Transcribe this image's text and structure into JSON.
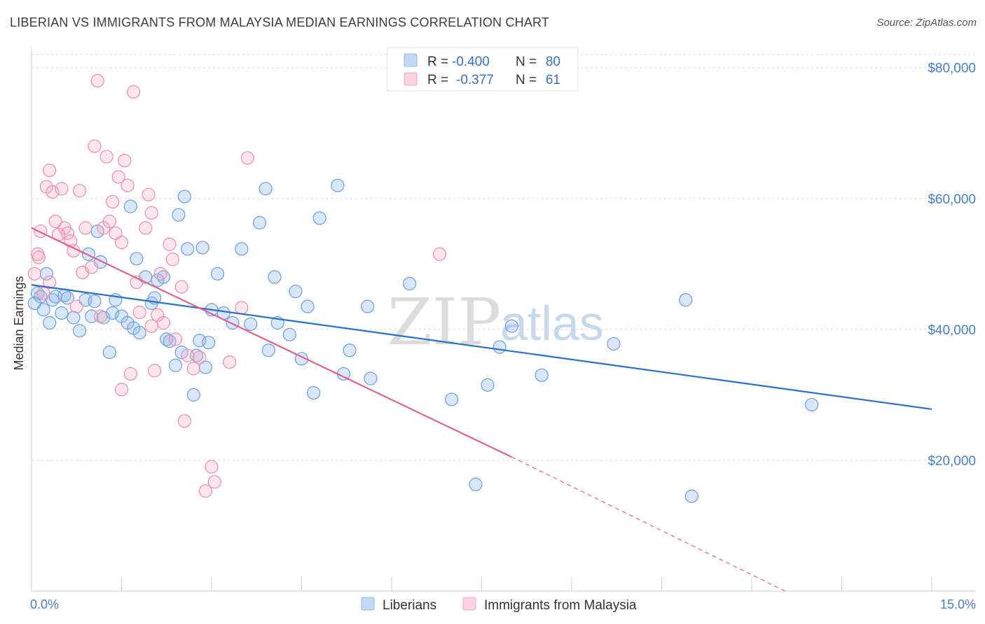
{
  "header": {
    "title": "LIBERIAN VS IMMIGRANTS FROM MALAYSIA MEDIAN EARNINGS CORRELATION CHART",
    "source": "Source: ZipAtlas.com"
  },
  "watermark": {
    "part1": "ZIP",
    "part2": "atlas"
  },
  "legend": {
    "rows": [
      {
        "r_label": "R =",
        "r_value": "-0.400",
        "n_label": "N =",
        "n_value": "80",
        "color": "#8fb8e8"
      },
      {
        "r_label": "R =",
        "r_value": "-0.377",
        "n_label": "N =",
        "n_value": "61",
        "color": "#f4a9c1"
      }
    ]
  },
  "bottom_legend": [
    {
      "label": "Liberians",
      "color": "#8fb8e8"
    },
    {
      "label": "Immigrants from Malaysia",
      "color": "#f4a9c1"
    }
  ],
  "chart_data": {
    "type": "scatter",
    "title": "LIBERIAN VS IMMIGRANTS FROM MALAYSIA MEDIAN EARNINGS CORRELATION CHART",
    "xlabel": "",
    "ylabel": "Median Earnings",
    "xlim": [
      0,
      15
    ],
    "ylim": [
      0,
      82000
    ],
    "x_tick_labels": [
      "0.0%",
      "15.0%"
    ],
    "y_ticks": [
      20000,
      40000,
      60000,
      80000
    ],
    "y_tick_labels": [
      "$20,000",
      "$40,000",
      "$60,000",
      "$80,000"
    ],
    "grid": true,
    "legend_position": "top-center",
    "series": [
      {
        "name": "Liberians",
        "color": "#6aa0e0",
        "trend": {
          "x": [
            0,
            15
          ],
          "y": [
            46800,
            27800
          ],
          "color": "#2a6fcf"
        },
        "points": [
          [
            0.1,
            45500
          ],
          [
            0.15,
            45000
          ],
          [
            0.2,
            43000
          ],
          [
            0.25,
            48500
          ],
          [
            0.3,
            41000
          ],
          [
            0.35,
            44500
          ],
          [
            0.4,
            45000
          ],
          [
            0.5,
            42500
          ],
          [
            0.55,
            45200
          ],
          [
            0.6,
            44800
          ],
          [
            0.7,
            41800
          ],
          [
            0.8,
            39800
          ],
          [
            0.9,
            44500
          ],
          [
            0.95,
            51500
          ],
          [
            1.0,
            42000
          ],
          [
            1.05,
            44300
          ],
          [
            1.1,
            55000
          ],
          [
            1.15,
            50300
          ],
          [
            1.2,
            41800
          ],
          [
            1.3,
            36500
          ],
          [
            1.35,
            42500
          ],
          [
            1.4,
            44500
          ],
          [
            1.5,
            42000
          ],
          [
            1.6,
            41000
          ],
          [
            1.65,
            58800
          ],
          [
            1.7,
            40200
          ],
          [
            1.75,
            50800
          ],
          [
            1.8,
            39500
          ],
          [
            1.9,
            48000
          ],
          [
            2.0,
            44000
          ],
          [
            2.05,
            44800
          ],
          [
            2.1,
            47500
          ],
          [
            2.2,
            48000
          ],
          [
            2.25,
            38500
          ],
          [
            2.3,
            38200
          ],
          [
            2.4,
            34500
          ],
          [
            2.45,
            57500
          ],
          [
            2.5,
            36500
          ],
          [
            2.55,
            60300
          ],
          [
            2.6,
            52300
          ],
          [
            2.7,
            30000
          ],
          [
            2.75,
            36000
          ],
          [
            2.8,
            38300
          ],
          [
            2.85,
            52500
          ],
          [
            2.9,
            34200
          ],
          [
            2.95,
            38000
          ],
          [
            3.0,
            43000
          ],
          [
            3.1,
            48500
          ],
          [
            3.2,
            42500
          ],
          [
            3.35,
            41000
          ],
          [
            3.5,
            52300
          ],
          [
            3.65,
            40800
          ],
          [
            3.8,
            56300
          ],
          [
            3.9,
            61500
          ],
          [
            3.95,
            36800
          ],
          [
            4.05,
            48000
          ],
          [
            4.1,
            41000
          ],
          [
            4.3,
            39200
          ],
          [
            4.4,
            45800
          ],
          [
            4.5,
            35500
          ],
          [
            4.6,
            43500
          ],
          [
            4.7,
            30300
          ],
          [
            4.8,
            57000
          ],
          [
            5.1,
            62000
          ],
          [
            5.2,
            33200
          ],
          [
            5.3,
            36800
          ],
          [
            5.6,
            43500
          ],
          [
            5.65,
            32500
          ],
          [
            6.3,
            47000
          ],
          [
            7.0,
            29300
          ],
          [
            7.4,
            16300
          ],
          [
            7.6,
            31500
          ],
          [
            7.8,
            37300
          ],
          [
            8.0,
            40500
          ],
          [
            8.5,
            33000
          ],
          [
            9.7,
            37800
          ],
          [
            10.9,
            44500
          ],
          [
            11.0,
            14500
          ],
          [
            13.0,
            28500
          ],
          [
            0.05,
            44000
          ]
        ]
      },
      {
        "name": "Immigrants from Malaysia",
        "color": "#f08fb0",
        "trend": {
          "x": [
            0,
            8.0
          ],
          "y": [
            55500,
            20500
          ],
          "color": "#e0608e",
          "dash_to": [
            15,
            -11000
          ]
        },
        "points": [
          [
            0.05,
            48500
          ],
          [
            0.1,
            51500
          ],
          [
            0.15,
            55000
          ],
          [
            0.2,
            45500
          ],
          [
            0.25,
            61800
          ],
          [
            0.3,
            64300
          ],
          [
            0.35,
            61000
          ],
          [
            0.4,
            56500
          ],
          [
            0.5,
            61500
          ],
          [
            0.55,
            55500
          ],
          [
            0.6,
            54700
          ],
          [
            0.65,
            53500
          ],
          [
            0.7,
            52000
          ],
          [
            0.8,
            61200
          ],
          [
            0.85,
            48700
          ],
          [
            0.9,
            55500
          ],
          [
            1.0,
            49500
          ],
          [
            1.05,
            68000
          ],
          [
            1.1,
            78000
          ],
          [
            1.15,
            42000
          ],
          [
            1.2,
            55500
          ],
          [
            1.3,
            56500
          ],
          [
            1.35,
            59500
          ],
          [
            1.4,
            54700
          ],
          [
            1.45,
            63300
          ],
          [
            1.5,
            53300
          ],
          [
            1.55,
            65800
          ],
          [
            1.6,
            62000
          ],
          [
            1.65,
            33200
          ],
          [
            1.7,
            76300
          ],
          [
            1.75,
            47200
          ],
          [
            1.8,
            42600
          ],
          [
            1.9,
            55500
          ],
          [
            1.95,
            60600
          ],
          [
            2.0,
            57800
          ],
          [
            2.05,
            33700
          ],
          [
            2.1,
            42200
          ],
          [
            2.2,
            41000
          ],
          [
            2.3,
            53000
          ],
          [
            2.35,
            50700
          ],
          [
            2.4,
            38500
          ],
          [
            2.5,
            46500
          ],
          [
            2.55,
            26000
          ],
          [
            2.6,
            36000
          ],
          [
            2.7,
            34000
          ],
          [
            2.8,
            35700
          ],
          [
            2.9,
            15300
          ],
          [
            3.0,
            19000
          ],
          [
            3.05,
            16700
          ],
          [
            3.3,
            35000
          ],
          [
            3.5,
            43300
          ],
          [
            3.6,
            66200
          ],
          [
            6.8,
            51500
          ],
          [
            0.12,
            51000
          ],
          [
            0.3,
            47200
          ],
          [
            1.5,
            30800
          ],
          [
            2.15,
            48500
          ],
          [
            0.45,
            54500
          ],
          [
            0.75,
            43500
          ],
          [
            1.25,
            66400
          ],
          [
            2.0,
            40500
          ]
        ]
      }
    ]
  }
}
